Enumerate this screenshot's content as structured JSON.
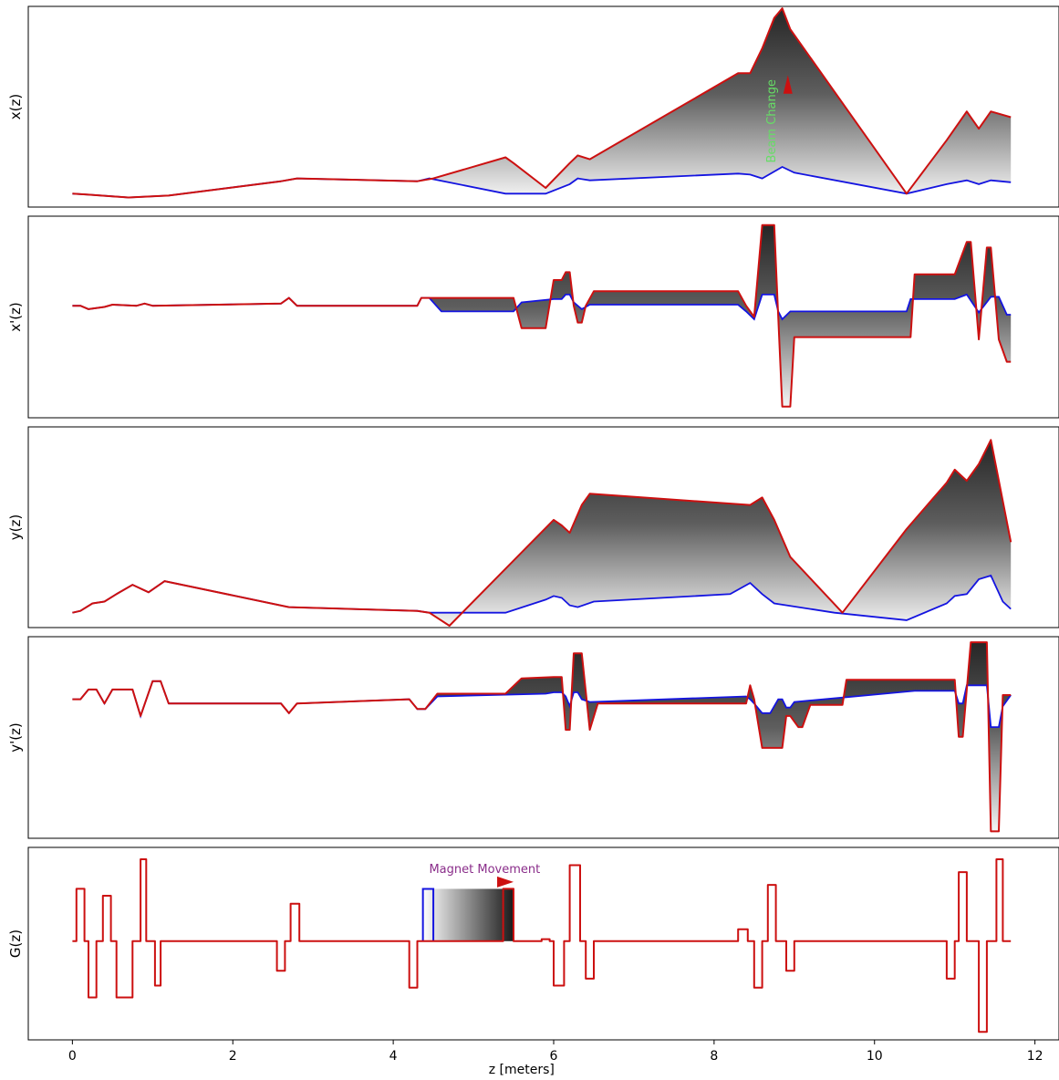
{
  "chart_data": {
    "type": "line",
    "shared_x": {
      "label": "z  [meters]",
      "ticks": [
        0,
        2,
        4,
        6,
        8,
        10,
        12
      ],
      "range": [
        -0.55,
        12.3
      ]
    },
    "colors": {
      "initial": "#1414e0",
      "final": "#cc1010",
      "band_dark": "#1a1a1a",
      "band_light": "#ffffff",
      "annotation_green": "#66dd66",
      "annotation_purple": "#8a2d8a"
    },
    "panels": [
      {
        "id": "x",
        "ylabel": "x(z)",
        "ylim": [
          -0.05,
          1.0
        ],
        "annotation": "Beam Change",
        "series": [
          {
            "role": "final",
            "x": [
              0,
              0.2,
              0.7,
              1.2,
              2.6,
              2.8,
              4.3,
              4.5,
              5.4,
              5.5,
              5.9,
              6.2,
              6.3,
              6.45,
              8.3,
              8.45,
              8.6,
              8.75,
              8.85,
              8.95,
              10.4,
              10.9,
              11.15,
              11.3,
              11.45,
              11.7
            ],
            "y": [
              0.02,
              0.015,
              0.0,
              0.01,
              0.085,
              0.1,
              0.085,
              0.1,
              0.21,
              0.18,
              0.05,
              0.18,
              0.22,
              0.2,
              0.65,
              0.65,
              0.78,
              0.94,
              0.99,
              0.88,
              0.02,
              0.3,
              0.45,
              0.36,
              0.45,
              0.42
            ]
          },
          {
            "role": "initial",
            "x": [
              0,
              0.2,
              0.7,
              1.2,
              2.6,
              2.8,
              4.3,
              4.45,
              5.4,
              5.9,
              6.2,
              6.3,
              6.45,
              8.3,
              8.45,
              8.6,
              8.85,
              9.0,
              10.4,
              10.9,
              11.15,
              11.3,
              11.45,
              11.7
            ],
            "y": [
              0.02,
              0.015,
              0.0,
              0.01,
              0.085,
              0.1,
              0.085,
              0.1,
              0.02,
              0.02,
              0.07,
              0.1,
              0.09,
              0.125,
              0.12,
              0.1,
              0.16,
              0.13,
              0.02,
              0.07,
              0.09,
              0.07,
              0.09,
              0.08
            ]
          }
        ]
      },
      {
        "id": "xp",
        "ylabel": "x'(z)",
        "ylim": [
          -1.0,
          0.8
        ],
        "series": [
          {
            "role": "final",
            "x": [
              0,
              0.1,
              0.2,
              0.4,
              0.5,
              0.8,
              0.9,
              1.0,
              2.6,
              2.7,
              2.8,
              4.3,
              4.35,
              4.45,
              5.5,
              5.6,
              5.9,
              6.0,
              6.1,
              6.15,
              6.2,
              6.25,
              6.3,
              6.35,
              6.4,
              6.5,
              6.6,
              8.3,
              8.4,
              8.5,
              8.6,
              8.65,
              8.75,
              8.8,
              8.85,
              8.95,
              9.0,
              9.1,
              10.45,
              10.5,
              10.9,
              11.0,
              11.15,
              11.2,
              11.3,
              11.4,
              11.45,
              11.55,
              11.65,
              11.7
            ],
            "y": [
              0.0,
              0.0,
              -0.03,
              -0.01,
              0.01,
              0.0,
              0.02,
              0.0,
              0.02,
              0.07,
              0.0,
              0.0,
              0.07,
              0.07,
              0.07,
              -0.2,
              -0.2,
              0.23,
              0.23,
              0.3,
              0.3,
              0.0,
              -0.15,
              -0.15,
              0.0,
              0.13,
              0.13,
              0.13,
              0.0,
              -0.1,
              0.72,
              0.72,
              0.72,
              -0.1,
              -0.9,
              -0.9,
              -0.28,
              -0.28,
              -0.28,
              0.28,
              0.28,
              0.28,
              0.57,
              0.57,
              -0.3,
              0.52,
              0.52,
              -0.3,
              -0.5,
              -0.5
            ]
          },
          {
            "role": "initial",
            "x": [
              0,
              0.1,
              0.2,
              0.4,
              0.5,
              0.8,
              0.9,
              1.0,
              2.6,
              2.7,
              2.8,
              4.3,
              4.35,
              4.45,
              4.6,
              5.5,
              5.6,
              6.0,
              6.1,
              6.15,
              6.2,
              6.25,
              6.35,
              6.45,
              8.3,
              8.4,
              8.5,
              8.6,
              8.75,
              8.8,
              8.85,
              8.95,
              10.4,
              10.45,
              10.9,
              11.0,
              11.15,
              11.3,
              11.45,
              11.55,
              11.65,
              11.7
            ],
            "y": [
              0.0,
              0.0,
              -0.03,
              -0.01,
              0.01,
              0.0,
              0.02,
              0.0,
              0.02,
              0.07,
              0.0,
              0.0,
              0.07,
              0.07,
              -0.05,
              -0.05,
              0.03,
              0.06,
              0.06,
              0.1,
              0.1,
              0.03,
              -0.03,
              0.01,
              0.01,
              -0.05,
              -0.12,
              0.1,
              0.1,
              -0.05,
              -0.12,
              -0.05,
              -0.05,
              0.06,
              0.06,
              0.06,
              0.1,
              -0.06,
              0.08,
              0.08,
              -0.08,
              -0.08
            ]
          }
        ]
      },
      {
        "id": "y",
        "ylabel": "y(z)",
        "ylim": [
          -0.08,
          1.0
        ],
        "series": [
          {
            "role": "final",
            "x": [
              0,
              0.1,
              0.25,
              0.4,
              0.55,
              0.75,
              0.95,
              1.15,
              2.7,
              4.3,
              4.45,
              4.7,
              6.0,
              6.1,
              6.2,
              6.35,
              6.45,
              8.45,
              8.6,
              8.75,
              8.95,
              9.6,
              10.4,
              10.9,
              11.0,
              11.15,
              11.3,
              11.45,
              11.7
            ],
            "y": [
              0.0,
              0.01,
              0.05,
              0.06,
              0.1,
              0.15,
              0.11,
              0.17,
              0.03,
              0.01,
              0.0,
              -0.07,
              0.5,
              0.47,
              0.43,
              0.58,
              0.64,
              0.58,
              0.62,
              0.5,
              0.3,
              0.0,
              0.45,
              0.7,
              0.77,
              0.71,
              0.8,
              0.93,
              0.38
            ]
          },
          {
            "role": "initial",
            "x": [
              0,
              0.1,
              0.25,
              0.4,
              0.55,
              0.75,
              0.95,
              1.15,
              2.7,
              4.3,
              4.45,
              5.4,
              5.9,
              6.0,
              6.1,
              6.2,
              6.3,
              6.5,
              8.2,
              8.45,
              8.6,
              8.75,
              9.5,
              10.4,
              10.9,
              11.0,
              11.15,
              11.3,
              11.45,
              11.6,
              11.7
            ],
            "y": [
              0.0,
              0.01,
              0.05,
              0.06,
              0.1,
              0.15,
              0.11,
              0.17,
              0.03,
              0.01,
              0.0,
              0.0,
              0.07,
              0.09,
              0.08,
              0.04,
              0.03,
              0.06,
              0.1,
              0.16,
              0.1,
              0.05,
              0.0,
              -0.04,
              0.05,
              0.09,
              0.1,
              0.18,
              0.2,
              0.06,
              0.02
            ]
          }
        ]
      },
      {
        "id": "yp",
        "ylabel": "y'(z)",
        "ylim": [
          -1.0,
          0.45
        ],
        "series": [
          {
            "role": "final",
            "x": [
              0,
              0.1,
              0.2,
              0.3,
              0.4,
              0.5,
              0.75,
              0.85,
              1.0,
              1.1,
              1.2,
              2.6,
              2.7,
              2.8,
              4.2,
              4.3,
              4.4,
              4.55,
              5.4,
              5.6,
              6.0,
              6.1,
              6.15,
              6.2,
              6.25,
              6.35,
              6.45,
              6.55,
              8.4,
              8.45,
              8.5,
              8.6,
              8.7,
              8.85,
              8.9,
              8.95,
              9.05,
              9.1,
              9.2,
              9.6,
              9.65,
              10.9,
              11.0,
              11.05,
              11.1,
              11.2,
              11.3,
              11.4,
              11.45,
              11.55,
              11.6,
              11.7
            ],
            "y": [
              0.0,
              0.0,
              0.07,
              0.07,
              -0.03,
              0.07,
              0.07,
              -0.12,
              0.13,
              0.13,
              -0.03,
              -0.03,
              -0.1,
              -0.03,
              0.0,
              -0.07,
              -0.07,
              0.04,
              0.04,
              0.15,
              0.16,
              0.16,
              -0.22,
              -0.22,
              0.33,
              0.33,
              -0.22,
              -0.03,
              -0.03,
              0.1,
              0.0,
              -0.35,
              -0.35,
              -0.35,
              -0.12,
              -0.12,
              -0.2,
              -0.2,
              -0.04,
              -0.04,
              0.14,
              0.14,
              0.14,
              -0.27,
              -0.27,
              0.41,
              0.41,
              0.41,
              -0.95,
              -0.95,
              0.03,
              0.03
            ]
          },
          {
            "role": "initial",
            "x": [
              0,
              0.1,
              0.2,
              0.3,
              0.4,
              0.5,
              0.75,
              0.85,
              1.0,
              1.1,
              1.2,
              2.6,
              2.7,
              2.8,
              4.2,
              4.3,
              4.4,
              4.55,
              5.9,
              6.0,
              6.1,
              6.15,
              6.2,
              6.25,
              6.3,
              6.35,
              6.45,
              8.4,
              8.45,
              8.5,
              8.6,
              8.7,
              8.8,
              8.85,
              8.9,
              8.95,
              9.0,
              10.5,
              10.9,
              11.0,
              11.05,
              11.1,
              11.15,
              11.3,
              11.4,
              11.45,
              11.55,
              11.6,
              11.7
            ],
            "y": [
              0.0,
              0.0,
              0.07,
              0.07,
              -0.03,
              0.07,
              0.07,
              -0.12,
              0.13,
              0.13,
              -0.03,
              -0.03,
              -0.1,
              -0.03,
              0.0,
              -0.07,
              -0.07,
              0.02,
              0.04,
              0.05,
              0.05,
              0.02,
              -0.05,
              0.05,
              0.05,
              0.0,
              -0.02,
              0.02,
              0.0,
              -0.03,
              -0.1,
              -0.1,
              0.0,
              0.0,
              -0.06,
              -0.06,
              -0.02,
              0.06,
              0.06,
              0.06,
              -0.03,
              -0.03,
              0.1,
              0.1,
              0.1,
              -0.2,
              -0.2,
              -0.05,
              0.03
            ]
          }
        ]
      },
      {
        "id": "g",
        "ylabel": "G(z)",
        "ylim": [
          -1.0,
          0.95
        ],
        "annotation": "Magnet Movement",
        "magnet_initial": [
          4.37,
          4.5
        ],
        "magnet_final": [
          5.37,
          5.5
        ],
        "series": [
          {
            "role": "final",
            "x": [
              0,
              0.05,
              0.05,
              0.15,
              0.15,
              0.2,
              0.2,
              0.3,
              0.3,
              0.38,
              0.38,
              0.48,
              0.48,
              0.55,
              0.55,
              0.75,
              0.75,
              0.85,
              0.85,
              0.92,
              0.92,
              1.03,
              1.03,
              1.1,
              1.1,
              1.2,
              1.2,
              2.55,
              2.55,
              2.65,
              2.65,
              2.72,
              2.72,
              2.83,
              2.83,
              4.2,
              4.2,
              4.3,
              4.3,
              5.37,
              5.37,
              5.5,
              5.5,
              5.85,
              5.85,
              5.95,
              5.95,
              6.0,
              6.0,
              6.13,
              6.13,
              6.2,
              6.2,
              6.33,
              6.33,
              6.4,
              6.4,
              6.5,
              6.5,
              8.3,
              8.3,
              8.42,
              8.42,
              8.5,
              8.5,
              8.6,
              8.6,
              8.67,
              8.67,
              8.77,
              8.77,
              8.9,
              8.9,
              9.0,
              9.0,
              10.9,
              10.9,
              11.0,
              11.0,
              11.05,
              11.05,
              11.15,
              11.15,
              11.3,
              11.3,
              11.4,
              11.4,
              11.52,
              11.52,
              11.6,
              11.6,
              11.7,
              11.7
            ],
            "y": [
              0,
              0,
              0.53,
              0.53,
              0,
              0,
              -0.57,
              -0.57,
              0,
              0,
              0.46,
              0.46,
              0,
              0,
              -0.57,
              -0.57,
              0,
              0,
              0.83,
              0.83,
              0,
              0,
              -0.45,
              -0.45,
              0,
              0,
              0,
              0,
              -0.3,
              -0.3,
              0,
              0,
              0.38,
              0.38,
              0,
              0,
              -0.47,
              -0.47,
              0,
              0,
              0.53,
              0.53,
              0,
              0,
              0.02,
              0.02,
              0,
              0,
              -0.45,
              -0.45,
              0,
              0,
              0.77,
              0.77,
              0,
              0,
              -0.38,
              -0.38,
              0,
              0,
              0.12,
              0.12,
              0,
              0,
              -0.47,
              -0.47,
              0,
              0,
              0.57,
              0.57,
              0,
              0,
              -0.3,
              -0.3,
              0,
              0,
              -0.38,
              -0.38,
              0,
              0,
              0.7,
              0.7,
              0,
              0,
              -0.92,
              -0.92,
              0,
              0,
              0.83,
              0.83,
              0,
              0,
              0
            ]
          }
        ]
      }
    ]
  }
}
